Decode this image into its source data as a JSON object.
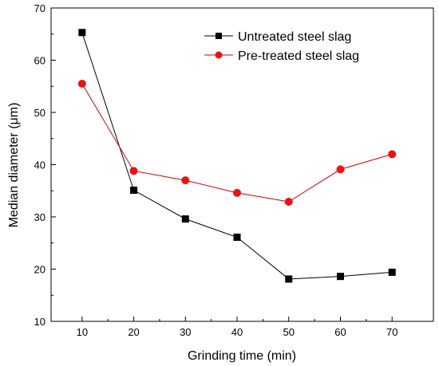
{
  "chart_data": {
    "type": "line",
    "xlabel": "Grinding time (min)",
    "ylabel": "Median diameter (μm)",
    "xlim": [
      4,
      78
    ],
    "ylim": [
      10,
      70
    ],
    "x_ticks": [
      10,
      20,
      30,
      40,
      50,
      60,
      70
    ],
    "y_ticks": [
      10,
      20,
      30,
      40,
      50,
      60,
      70
    ],
    "grid": false,
    "legend_position": "top-right",
    "x": [
      10,
      20,
      30,
      40,
      50,
      60,
      70
    ],
    "series": [
      {
        "name": "Untreated steel slag",
        "marker": "square",
        "color": "#000000",
        "values": [
          65.3,
          35.1,
          29.6,
          26.1,
          18.1,
          18.6,
          19.4
        ]
      },
      {
        "name": "Pre-treated steel slag",
        "marker": "circle",
        "color": "#cc0000",
        "values": [
          55.5,
          38.8,
          37.0,
          34.6,
          32.9,
          39.1,
          42.0
        ]
      }
    ]
  }
}
